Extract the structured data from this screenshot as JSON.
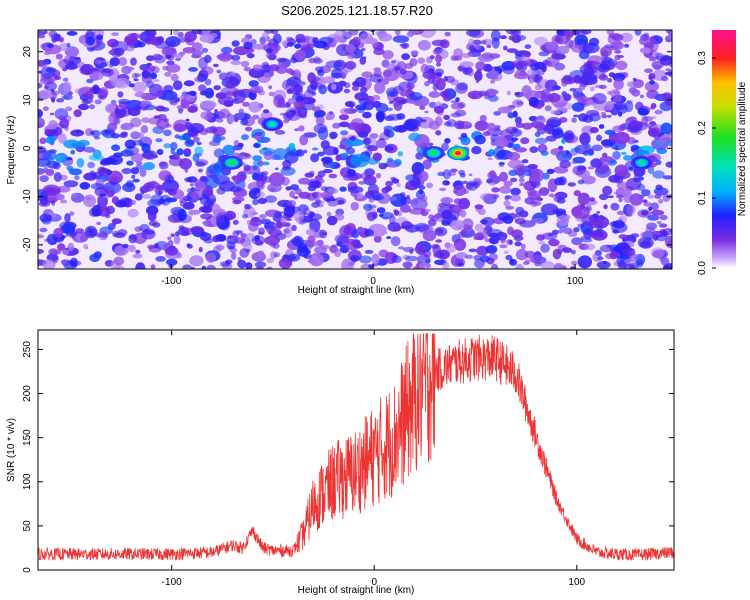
{
  "title": "S206.2025.121.18.57.R20",
  "colors": {
    "trace": "#ee3333",
    "spectrum_low": "#ffffff",
    "spectrum_mid": "#7a2be0"
  },
  "chart_data": [
    {
      "type": "heatmap",
      "xlabel": "Height of straight line (km)",
      "ylabel": "Frequency (Hz)",
      "xlim": [
        -166,
        148
      ],
      "ylim": [
        -25,
        24.5
      ],
      "xticks": [
        -100,
        0,
        100
      ],
      "yticks": [
        -20,
        -10,
        0,
        10,
        20
      ],
      "colorbar": {
        "label": "Normalized spectral amplitude",
        "range": [
          0,
          0.34
        ],
        "ticks": [
          "0.0",
          "0.1",
          "0.2",
          "0.3"
        ]
      },
      "features": [
        {
          "x": -70,
          "y": -3,
          "amplitude": 0.18
        },
        {
          "x": -50,
          "y": 5,
          "amplitude": 0.15
        },
        {
          "x": 30,
          "y": -1,
          "amplitude": 0.18
        },
        {
          "x": 42,
          "y": -1,
          "amplitude": 0.32
        },
        {
          "x": 133,
          "y": -3,
          "amplitude": 0.16
        }
      ]
    },
    {
      "type": "line",
      "xlabel": "Height of straight line (km)",
      "ylabel": "SNR (10 * v/v)",
      "xlim": [
        -166,
        148
      ],
      "ylim": [
        0,
        272
      ],
      "xticks": [
        -100,
        0,
        100
      ],
      "yticks": [
        0,
        50,
        100,
        150,
        200,
        250
      ],
      "envelope": {
        "x": [
          -166,
          -140,
          -100,
          -80,
          -70,
          -65,
          -60,
          -55,
          -50,
          -40,
          -35,
          -30,
          -20,
          -10,
          0,
          10,
          20,
          30,
          40,
          50,
          60,
          70,
          80,
          90,
          100,
          110,
          120,
          130,
          148
        ],
        "y": [
          18,
          18,
          18,
          20,
          28,
          25,
          45,
          25,
          22,
          22,
          40,
          75,
          100,
          110,
          130,
          150,
          195,
          225,
          235,
          240,
          240,
          222,
          150,
          80,
          35,
          20,
          18,
          17,
          20
        ]
      }
    }
  ]
}
